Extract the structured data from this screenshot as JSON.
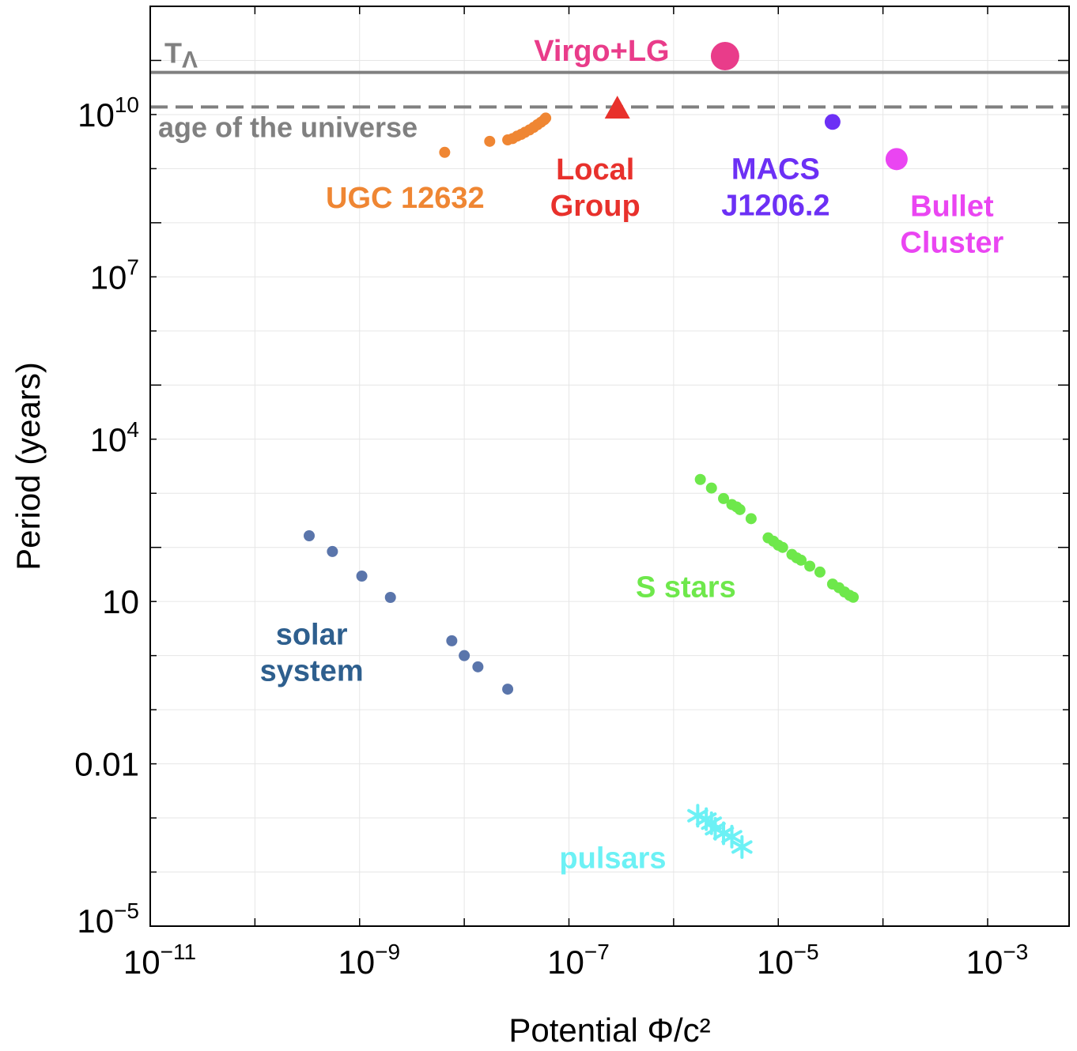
{
  "chart_data": {
    "type": "scatter",
    "xlabel": "Potential Φ/c²",
    "ylabel": "Period (years)",
    "x_scale": "log",
    "y_scale": "log",
    "xlim": [
      1e-11,
      0.006
    ],
    "ylim": [
      1e-05,
      1000000000000.0
    ],
    "grid": true,
    "x_ticks": [
      {
        "value": 1e-11,
        "base": "10",
        "exp": "−11"
      },
      {
        "value": 1e-09,
        "base": "10",
        "exp": "−9"
      },
      {
        "value": 1e-07,
        "base": "10",
        "exp": "−7"
      },
      {
        "value": 1e-05,
        "base": "10",
        "exp": "−5"
      },
      {
        "value": 0.001,
        "base": "10",
        "exp": "−3"
      }
    ],
    "y_ticks": [
      {
        "value": 1e-05,
        "base": "10",
        "exp": "−5"
      },
      {
        "value": 0.01,
        "base": "0.01",
        "exp": ""
      },
      {
        "value": 10,
        "base": "10",
        "exp": ""
      },
      {
        "value": 10000,
        "base": "10",
        "exp": "4"
      },
      {
        "value": 10000000,
        "base": "10",
        "exp": "7"
      },
      {
        "value": 10000000000,
        "base": "10",
        "exp": "10"
      }
    ],
    "reference_lines": [
      {
        "label": "T",
        "label_sub": "Λ",
        "y": 60000000000.0,
        "style": "solid",
        "color": "#808080"
      },
      {
        "label": "age of the universe",
        "y": 13800000000.0,
        "style": "dashed",
        "color": "#808080"
      }
    ],
    "series": [
      {
        "name": "solar system",
        "color": "#5a75ab",
        "label_color": "#2e5f8e",
        "marker": "circle",
        "points": [
          [
            3.3e-10,
            164
          ],
          [
            5.5e-10,
            84
          ],
          [
            1.05e-09,
            29.5
          ],
          [
            1.97e-09,
            11.9
          ],
          [
            7.6e-09,
            1.88
          ],
          [
            1e-08,
            1.0
          ],
          [
            1.35e-08,
            0.62
          ],
          [
            2.6e-08,
            0.24
          ]
        ]
      },
      {
        "name": "S stars",
        "color": "#6ee84b",
        "label_color": "#6ee84b",
        "marker": "circle",
        "points": [
          [
            1.8e-06,
            1800
          ],
          [
            2.3e-06,
            1250
          ],
          [
            3e-06,
            800
          ],
          [
            3.6e-06,
            620
          ],
          [
            4e-06,
            560
          ],
          [
            4.3e-06,
            500
          ],
          [
            5.5e-06,
            340
          ],
          [
            8e-06,
            150
          ],
          [
            9e-06,
            130
          ],
          [
            1e-05,
            110
          ],
          [
            1.1e-05,
            100
          ],
          [
            1.35e-05,
            74
          ],
          [
            1.5e-05,
            64
          ],
          [
            1.65e-05,
            58
          ],
          [
            2e-05,
            45
          ],
          [
            2.5e-05,
            35
          ],
          [
            3.3e-05,
            21
          ],
          [
            3.8e-05,
            18
          ],
          [
            4.3e-05,
            15
          ],
          [
            4.8e-05,
            13
          ],
          [
            5.2e-05,
            12
          ]
        ]
      },
      {
        "name": "pulsars",
        "color": "#6cf1f5",
        "label_color": "#6cf1f5",
        "marker": "star",
        "points": [
          [
            1.7e-06,
            0.0011
          ],
          [
            2.05e-06,
            0.00095
          ],
          [
            2.3e-06,
            0.0008
          ],
          [
            2.5e-06,
            0.00063
          ],
          [
            3e-06,
            0.00052
          ],
          [
            3.6e-06,
            0.00045
          ],
          [
            4.5e-06,
            0.00029
          ]
        ]
      },
      {
        "name": "UGC 12632",
        "color": "#ef8633",
        "label_color": "#ef8633",
        "marker": "circle",
        "points": [
          [
            6.5e-09,
            2000000000.0
          ],
          [
            1.75e-08,
            3200000000.0
          ],
          [
            2.6e-08,
            3400000000.0
          ],
          [
            2.9e-08,
            3600000000.0
          ],
          [
            3.2e-08,
            4000000000.0
          ],
          [
            3.5e-08,
            4300000000.0
          ],
          [
            3.8e-08,
            4700000000.0
          ],
          [
            4.2e-08,
            5200000000.0
          ],
          [
            4.6e-08,
            5800000000.0
          ],
          [
            5e-08,
            6500000000.0
          ],
          [
            5.4e-08,
            7200000000.0
          ],
          [
            5.8e-08,
            8000000000.0
          ],
          [
            6e-08,
            8600000000.0
          ]
        ]
      },
      {
        "name": "Local Group",
        "label_line1": "Local",
        "label_line2": "Group",
        "color": "#e8312c",
        "label_color": "#e8312c",
        "marker": "triangle",
        "points": [
          [
            2.9e-07,
            13000000000.0
          ]
        ]
      },
      {
        "name": "MACS J1206.2",
        "label_line1": "MACS",
        "label_line2": "J1206.2",
        "color": "#6c30f5",
        "label_color": "#6c30f5",
        "marker": "circle",
        "points": [
          [
            3.3e-05,
            7300000000.0
          ]
        ]
      },
      {
        "name": "Bullet Cluster",
        "label_line1": "Bullet",
        "label_line2": "Cluster",
        "color": "#ea45f2",
        "label_color": "#ea45f2",
        "marker": "circle-large",
        "points": [
          [
            0.000135,
            1500000000.0
          ]
        ]
      },
      {
        "name": "Virgo+LG",
        "color": "#e93c8a",
        "label_color": "#e93c8a",
        "marker": "circle-xlarge",
        "points": [
          [
            3.1e-06,
            120000000000.0
          ]
        ]
      }
    ]
  }
}
